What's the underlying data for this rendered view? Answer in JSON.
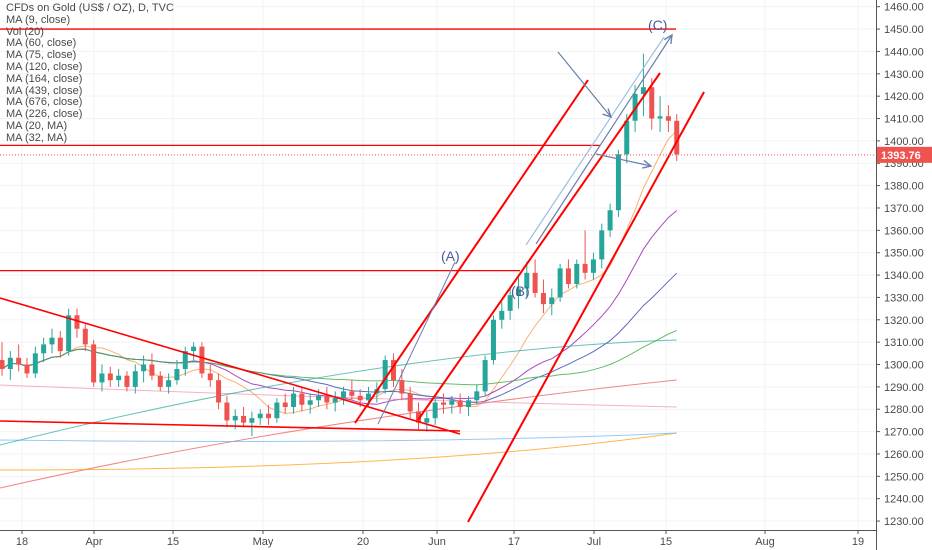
{
  "chart_data": {
    "type": "candlestick",
    "title": "CFDs on Gold (US$ / OZ), D, TVC",
    "indicators": [
      "MA (9, close)",
      "Vol (20)",
      "MA (60, close)",
      "MA (75, close)",
      "MA (120, close)",
      "MA (164, close)",
      "MA (439, close)",
      "MA (676, close)",
      "MA (226, close)",
      "MA (20, MA)",
      "MA (32, MA)"
    ],
    "x_ticks": [
      "18",
      "Apr",
      "15",
      "May",
      "20",
      "Jun",
      "17",
      "Jul",
      "15",
      "Aug",
      "19"
    ],
    "y_ticks": [
      1230,
      1240,
      1250,
      1260,
      1270,
      1280,
      1290,
      1300,
      1310,
      1320,
      1330,
      1340,
      1350,
      1360,
      1370,
      1380,
      1390,
      1400,
      1410,
      1420,
      1430,
      1440,
      1450,
      1460
    ],
    "ylim": [
      1226,
      1463
    ],
    "last_price": "1393.76",
    "wave_labels": [
      "(A)",
      "(B)",
      "(C)"
    ],
    "horizontal_levels": [
      1450,
      1342,
      1398
    ],
    "colors": {
      "up": "#26a69a",
      "down": "#ef5350",
      "drawing": "#ff0000",
      "arrow": "#6a7fae",
      "axis_text": "#4a4a4a"
    },
    "ohlc": [
      [
        1302,
        1310,
        1295,
        1298
      ],
      [
        1298,
        1306,
        1293,
        1303
      ],
      [
        1303,
        1309,
        1297,
        1300
      ],
      [
        1300,
        1303,
        1294,
        1296
      ],
      [
        1296,
        1308,
        1294,
        1305
      ],
      [
        1305,
        1312,
        1301,
        1309
      ],
      [
        1309,
        1316,
        1305,
        1312
      ],
      [
        1312,
        1315,
        1303,
        1306
      ],
      [
        1306,
        1325,
        1304,
        1322
      ],
      [
        1322,
        1325,
        1312,
        1316
      ],
      [
        1316,
        1318,
        1306,
        1309
      ],
      [
        1309,
        1311,
        1290,
        1292
      ],
      [
        1292,
        1300,
        1288,
        1296
      ],
      [
        1296,
        1299,
        1290,
        1293
      ],
      [
        1293,
        1298,
        1290,
        1295
      ],
      [
        1295,
        1297,
        1288,
        1290
      ],
      [
        1290,
        1300,
        1287,
        1297
      ],
      [
        1297,
        1304,
        1292,
        1300
      ],
      [
        1300,
        1305,
        1293,
        1295
      ],
      [
        1295,
        1297,
        1288,
        1290
      ],
      [
        1290,
        1296,
        1287,
        1293
      ],
      [
        1293,
        1302,
        1291,
        1298
      ],
      [
        1298,
        1308,
        1295,
        1306
      ],
      [
        1306,
        1310,
        1302,
        1308
      ],
      [
        1308,
        1310,
        1294,
        1296
      ],
      [
        1296,
        1300,
        1290,
        1293
      ],
      [
        1293,
        1296,
        1280,
        1283
      ],
      [
        1283,
        1286,
        1272,
        1275
      ],
      [
        1275,
        1280,
        1271,
        1277
      ],
      [
        1277,
        1281,
        1272,
        1274
      ],
      [
        1274,
        1279,
        1268,
        1276
      ],
      [
        1276,
        1280,
        1273,
        1278
      ],
      [
        1278,
        1282,
        1273,
        1276
      ],
      [
        1276,
        1285,
        1274,
        1283
      ],
      [
        1283,
        1287,
        1278,
        1281
      ],
      [
        1281,
        1290,
        1278,
        1287
      ],
      [
        1287,
        1290,
        1279,
        1282
      ],
      [
        1282,
        1287,
        1278,
        1284
      ],
      [
        1284,
        1289,
        1281,
        1286
      ],
      [
        1286,
        1290,
        1280,
        1283
      ],
      [
        1283,
        1288,
        1279,
        1285
      ],
      [
        1285,
        1290,
        1282,
        1288
      ],
      [
        1288,
        1293,
        1284,
        1286
      ],
      [
        1286,
        1289,
        1281,
        1284
      ],
      [
        1284,
        1290,
        1281,
        1287
      ],
      [
        1287,
        1292,
        1283,
        1289
      ],
      [
        1289,
        1304,
        1287,
        1302
      ],
      [
        1302,
        1305,
        1290,
        1293
      ],
      [
        1293,
        1298,
        1284,
        1287
      ],
      [
        1287,
        1290,
        1276,
        1279
      ],
      [
        1279,
        1283,
        1271,
        1274
      ],
      [
        1274,
        1279,
        1270,
        1276
      ],
      [
        1276,
        1285,
        1273,
        1283
      ],
      [
        1283,
        1287,
        1278,
        1282
      ],
      [
        1282,
        1286,
        1278,
        1284
      ],
      [
        1284,
        1287,
        1278,
        1281
      ],
      [
        1281,
        1286,
        1277,
        1284
      ],
      [
        1284,
        1291,
        1282,
        1288
      ],
      [
        1288,
        1304,
        1286,
        1302
      ],
      [
        1302,
        1322,
        1300,
        1320
      ],
      [
        1320,
        1328,
        1316,
        1324
      ],
      [
        1324,
        1334,
        1320,
        1331
      ],
      [
        1331,
        1339,
        1325,
        1334
      ],
      [
        1334,
        1346,
        1330,
        1341
      ],
      [
        1341,
        1347,
        1330,
        1332
      ],
      [
        1332,
        1338,
        1323,
        1327
      ],
      [
        1327,
        1334,
        1322,
        1330
      ],
      [
        1330,
        1345,
        1328,
        1343
      ],
      [
        1343,
        1347,
        1334,
        1336
      ],
      [
        1336,
        1347,
        1334,
        1345
      ],
      [
        1345,
        1360,
        1338,
        1341
      ],
      [
        1341,
        1350,
        1338,
        1347
      ],
      [
        1347,
        1363,
        1343,
        1360
      ],
      [
        1360,
        1372,
        1357,
        1369
      ],
      [
        1369,
        1396,
        1366,
        1394
      ],
      [
        1394,
        1412,
        1390,
        1409
      ],
      [
        1409,
        1425,
        1404,
        1421
      ],
      [
        1421,
        1439,
        1411,
        1424
      ],
      [
        1424,
        1428,
        1405,
        1410
      ],
      [
        1410,
        1420,
        1404,
        1411
      ],
      [
        1411,
        1416,
        1404,
        1409
      ],
      [
        1409,
        1412,
        1391,
        1394
      ]
    ]
  }
}
